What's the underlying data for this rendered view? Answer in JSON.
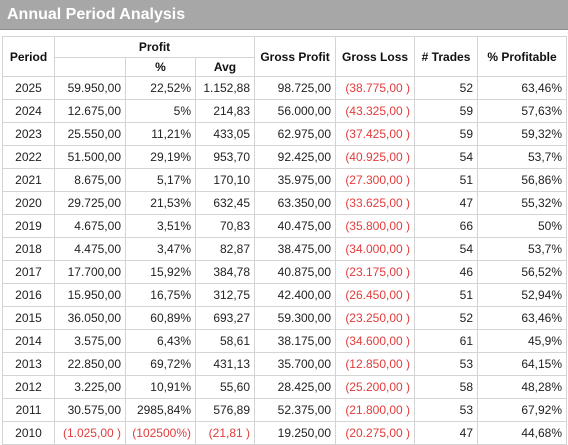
{
  "window": {
    "title": "Annual Period Analysis"
  },
  "colors": {
    "title_bar": "#a7a7a7",
    "negative": "#e23b3b"
  },
  "table": {
    "headers": {
      "period": "Period",
      "profit": "Profit",
      "pct": "%",
      "avg": "Avg",
      "gross_profit": "Gross Profit",
      "gross_loss": "Gross Loss",
      "trades": "# Trades",
      "pct_profitable": "% Profitable"
    },
    "rows": [
      {
        "period": "2025",
        "profit": "59.950,00",
        "pct": "22,52%",
        "avg": "1.152,88",
        "gross_profit": "98.725,00",
        "gross_loss": "(38.775,00 )",
        "trades": "52",
        "pct_profitable": "63,46%"
      },
      {
        "period": "2024",
        "profit": "12.675,00",
        "pct": "5%",
        "avg": "214,83",
        "gross_profit": "56.000,00",
        "gross_loss": "(43.325,00 )",
        "trades": "59",
        "pct_profitable": "57,63%"
      },
      {
        "period": "2023",
        "profit": "25.550,00",
        "pct": "11,21%",
        "avg": "433,05",
        "gross_profit": "62.975,00",
        "gross_loss": "(37.425,00 )",
        "trades": "59",
        "pct_profitable": "59,32%"
      },
      {
        "period": "2022",
        "profit": "51.500,00",
        "pct": "29,19%",
        "avg": "953,70",
        "gross_profit": "92.425,00",
        "gross_loss": "(40.925,00 )",
        "trades": "54",
        "pct_profitable": "53,7%"
      },
      {
        "period": "2021",
        "profit": "8.675,00",
        "pct": "5,17%",
        "avg": "170,10",
        "gross_profit": "35.975,00",
        "gross_loss": "(27.300,00 )",
        "trades": "51",
        "pct_profitable": "56,86%"
      },
      {
        "period": "2020",
        "profit": "29.725,00",
        "pct": "21,53%",
        "avg": "632,45",
        "gross_profit": "63.350,00",
        "gross_loss": "(33.625,00 )",
        "trades": "47",
        "pct_profitable": "55,32%"
      },
      {
        "period": "2019",
        "profit": "4.675,00",
        "pct": "3,51%",
        "avg": "70,83",
        "gross_profit": "40.475,00",
        "gross_loss": "(35.800,00 )",
        "trades": "66",
        "pct_profitable": "50%"
      },
      {
        "period": "2018",
        "profit": "4.475,00",
        "pct": "3,47%",
        "avg": "82,87",
        "gross_profit": "38.475,00",
        "gross_loss": "(34.000,00 )",
        "trades": "54",
        "pct_profitable": "53,7%"
      },
      {
        "period": "2017",
        "profit": "17.700,00",
        "pct": "15,92%",
        "avg": "384,78",
        "gross_profit": "40.875,00",
        "gross_loss": "(23.175,00 )",
        "trades": "46",
        "pct_profitable": "56,52%"
      },
      {
        "period": "2016",
        "profit": "15.950,00",
        "pct": "16,75%",
        "avg": "312,75",
        "gross_profit": "42.400,00",
        "gross_loss": "(26.450,00 )",
        "trades": "51",
        "pct_profitable": "52,94%"
      },
      {
        "period": "2015",
        "profit": "36.050,00",
        "pct": "60,89%",
        "avg": "693,27",
        "gross_profit": "59.300,00",
        "gross_loss": "(23.250,00 )",
        "trades": "52",
        "pct_profitable": "63,46%"
      },
      {
        "period": "2014",
        "profit": "3.575,00",
        "pct": "6,43%",
        "avg": "58,61",
        "gross_profit": "38.175,00",
        "gross_loss": "(34.600,00 )",
        "trades": "61",
        "pct_profitable": "45,9%"
      },
      {
        "period": "2013",
        "profit": "22.850,00",
        "pct": "69,72%",
        "avg": "431,13",
        "gross_profit": "35.700,00",
        "gross_loss": "(12.850,00 )",
        "trades": "53",
        "pct_profitable": "64,15%"
      },
      {
        "period": "2012",
        "profit": "3.225,00",
        "pct": "10,91%",
        "avg": "55,60",
        "gross_profit": "28.425,00",
        "gross_loss": "(25.200,00 )",
        "trades": "58",
        "pct_profitable": "48,28%"
      },
      {
        "period": "2011",
        "profit": "30.575,00",
        "pct": "2985,84%",
        "avg": "576,89",
        "gross_profit": "52.375,00",
        "gross_loss": "(21.800,00 )",
        "trades": "53",
        "pct_profitable": "67,92%"
      },
      {
        "period": "2010",
        "profit": "(1.025,00 )",
        "pct": "(102500%)",
        "avg": "(21,81 )",
        "gross_profit": "19.250,00",
        "gross_loss": "(20.275,00 )",
        "trades": "47",
        "pct_profitable": "44,68%"
      }
    ]
  }
}
